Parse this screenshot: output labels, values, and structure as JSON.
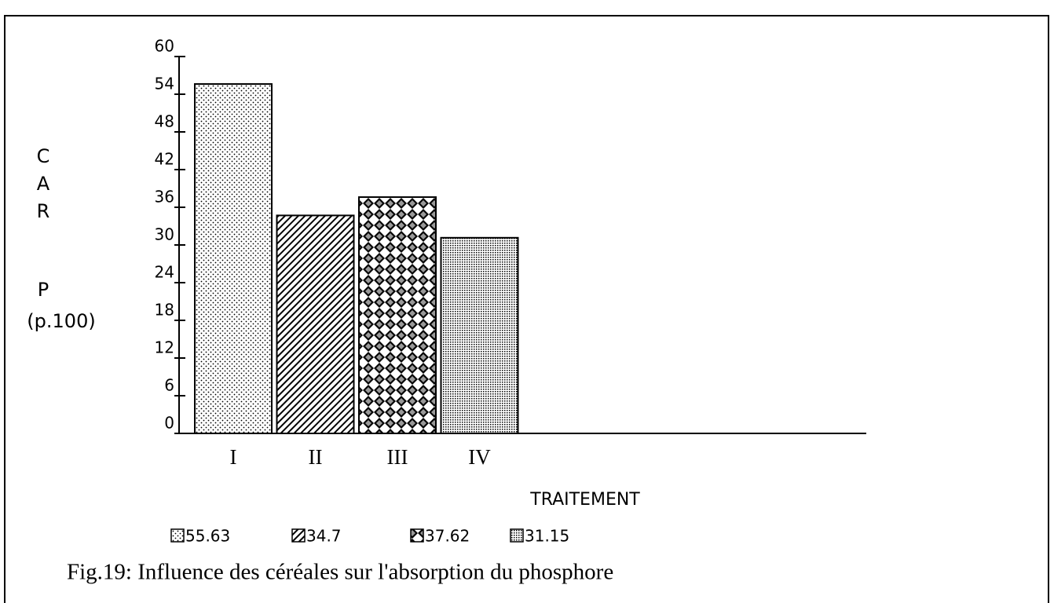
{
  "chart_data": {
    "type": "bar",
    "title": "Fig.19: Influence des céréales sur l'absorption du phosphore",
    "y_label": [
      "C",
      "A",
      "R",
      "P",
      "(p.100)"
    ],
    "x_label": "TRAITEMENT",
    "categories": [
      "I",
      "II",
      "III",
      "IV"
    ],
    "values": [
      55.63,
      34.7,
      37.62,
      31.15
    ],
    "color": "#000000",
    "ylim": [
      0,
      60
    ],
    "yticks": [
      0,
      6,
      12,
      18,
      24,
      30,
      36,
      42,
      48,
      54,
      60
    ]
  }
}
